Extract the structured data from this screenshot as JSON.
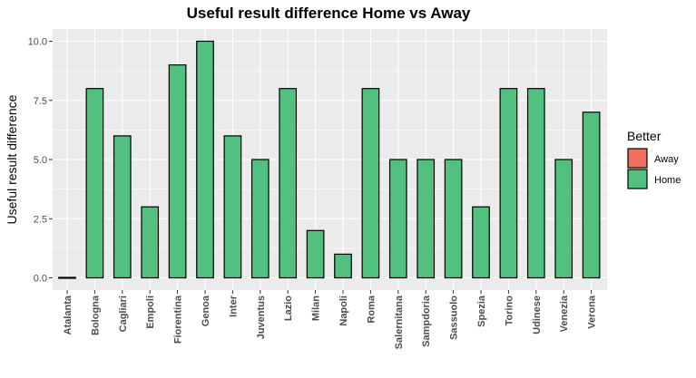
{
  "chart_data": {
    "type": "bar",
    "title": "Useful result difference Home vs Away",
    "xlabel": "",
    "ylabel": "Useful result difference",
    "ylim": [
      0,
      10.5
    ],
    "yticks": [
      "0.0",
      "2.5",
      "5.0",
      "7.5",
      "10.0"
    ],
    "ytick_values": [
      0,
      2.5,
      5,
      7.5,
      10
    ],
    "grid": true,
    "categories": [
      "Atalanta",
      "Bologna",
      "Cagliari",
      "Empoli",
      "Fiorentina",
      "Genoa",
      "Inter",
      "Juventus",
      "Lazio",
      "Milan",
      "Napoli",
      "Roma",
      "Salernitana",
      "Sampdoria",
      "Sassuolo",
      "Spezia",
      "Torino",
      "Udinese",
      "Venezia",
      "Verona"
    ],
    "values": [
      0,
      8,
      6,
      3,
      9,
      10,
      6,
      5,
      8,
      2,
      1,
      8,
      5,
      5,
      5,
      3,
      8,
      8,
      5,
      7
    ],
    "better": [
      "Home",
      "Home",
      "Home",
      "Home",
      "Home",
      "Home",
      "Home",
      "Home",
      "Home",
      "Home",
      "Home",
      "Home",
      "Home",
      "Home",
      "Home",
      "Home",
      "Home",
      "Home",
      "Home",
      "Home"
    ],
    "legend": {
      "title": "Better",
      "placement": "right",
      "entries": [
        {
          "label": "Away",
          "color": "#EF6F61"
        },
        {
          "label": "Home",
          "color": "#52C07F"
        }
      ]
    },
    "colors": {
      "panel_background": "#EBEBEB",
      "grid": "#FFFFFF",
      "bar_outline": "#000000"
    }
  }
}
